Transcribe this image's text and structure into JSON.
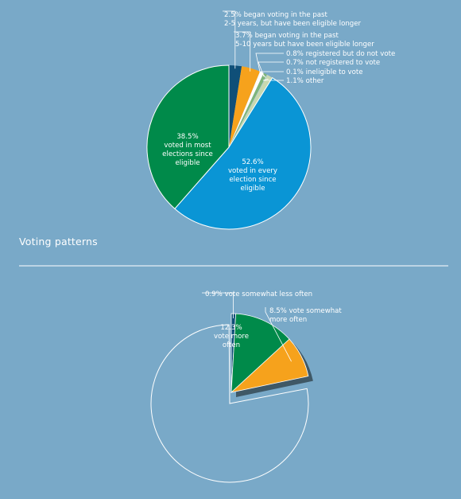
{
  "section_title": "Voting patterns",
  "colors": {
    "background": "#79a9c8",
    "label_text": "#ffffff",
    "leader_line": "#ffffff",
    "divider": "#ffffff",
    "shadow": "#3f5866",
    "empty_slice_stroke": "#ffffff"
  },
  "chart_data": [
    {
      "type": "pie",
      "slices": [
        {
          "value": 2.5,
          "color": "#0f4f78",
          "label_lines": [
            "2.5% began voting in the past",
            "2-5 years, but have been eligible longer"
          ]
        },
        {
          "value": 3.7,
          "color": "#f6a21c",
          "label_lines": [
            "3.7% began voting in the past",
            "5-10 years but have been eligible longer"
          ]
        },
        {
          "value": 0.8,
          "color": "#ffffff",
          "label_lines": [
            "0.8% registered but do not vote"
          ]
        },
        {
          "value": 0.7,
          "color": "#7fb57a",
          "label_lines": [
            "0.7% not registered to vote"
          ]
        },
        {
          "value": 0.1,
          "color": "#b9d6ea",
          "label_lines": [
            "0.1% ineligible to vote"
          ]
        },
        {
          "value": 1.1,
          "color": "#c8d8b0",
          "label_lines": [
            "1.1% other"
          ]
        },
        {
          "value": 52.6,
          "color": "#0a95d5",
          "label_lines": [
            "52.6%",
            "voted in every",
            "election since",
            "eligible"
          ]
        },
        {
          "value": 38.5,
          "color": "#008a4a",
          "label_lines": [
            "38.5%",
            "voted in most",
            "elections since",
            "eligible"
          ]
        }
      ]
    },
    {
      "type": "pie",
      "slices": [
        {
          "value": 0.9,
          "color": "#0f4f78",
          "label_lines": [
            "0.9% vote somewhat less often"
          ]
        },
        {
          "value": 12.3,
          "color": "#008a4a",
          "label_lines": [
            "12.3%",
            "vote more",
            "often"
          ]
        },
        {
          "value": 8.5,
          "color": "#f6a21c",
          "label_lines": [
            "8.5% vote somewhat",
            "more often"
          ]
        },
        {
          "value": 78.3,
          "color": "none",
          "label_lines": []
        }
      ]
    }
  ]
}
